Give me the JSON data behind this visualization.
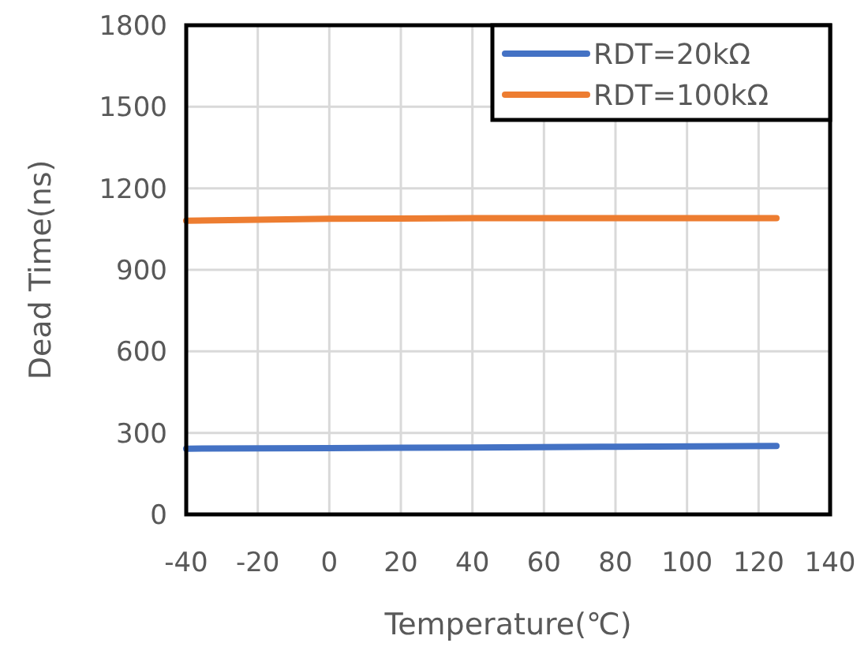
{
  "chart_data": {
    "type": "line",
    "xlabel": "Temperature(℃)",
    "ylabel": "Dead Time(ns)",
    "x": [
      -40,
      0,
      40,
      80,
      125
    ],
    "series": [
      {
        "name": "RDT=20kΩ",
        "color": "#4472c4",
        "values": [
          242,
          244,
          246,
          249,
          252
        ]
      },
      {
        "name": "RDT=100kΩ",
        "color": "#ed7d31",
        "values": [
          1081,
          1088,
          1090,
          1090,
          1090
        ]
      }
    ],
    "xlim": [
      -40,
      140
    ],
    "xticks": [
      -40,
      -20,
      0,
      20,
      40,
      60,
      80,
      100,
      120,
      140
    ],
    "ylim": [
      0,
      1800
    ],
    "yticks": [
      0,
      300,
      600,
      900,
      1200,
      1500,
      1800
    ],
    "grid": true,
    "legend": "top right",
    "marker": "none",
    "line_style": "solid"
  }
}
